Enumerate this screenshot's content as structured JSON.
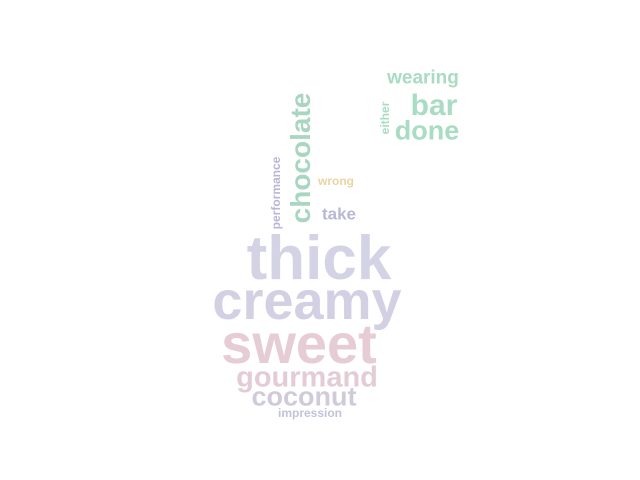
{
  "words": [
    {
      "text": "wearing",
      "color": "#a8dcc3"
    },
    {
      "text": "bar",
      "color": "#a8dcc3"
    },
    {
      "text": "either",
      "color": "#a8dcc3"
    },
    {
      "text": "done",
      "color": "#a8dcc3"
    },
    {
      "text": "chocolate",
      "color": "#a9d6c3"
    },
    {
      "text": "performance",
      "color": "#b9b7d6"
    },
    {
      "text": "wrong",
      "color": "#ecd3a4"
    },
    {
      "text": "take",
      "color": "#b9b7d6"
    },
    {
      "text": "thick",
      "color": "#d4d3e6"
    },
    {
      "text": "creamy",
      "color": "#d4d0e4"
    },
    {
      "text": "sweet",
      "color": "#e6cdd5"
    },
    {
      "text": "gourmand",
      "color": "#e3ccd6"
    },
    {
      "text": "coconut",
      "color": "#cfcbdb"
    },
    {
      "text": "impression",
      "color": "#c2c3d8"
    }
  ]
}
